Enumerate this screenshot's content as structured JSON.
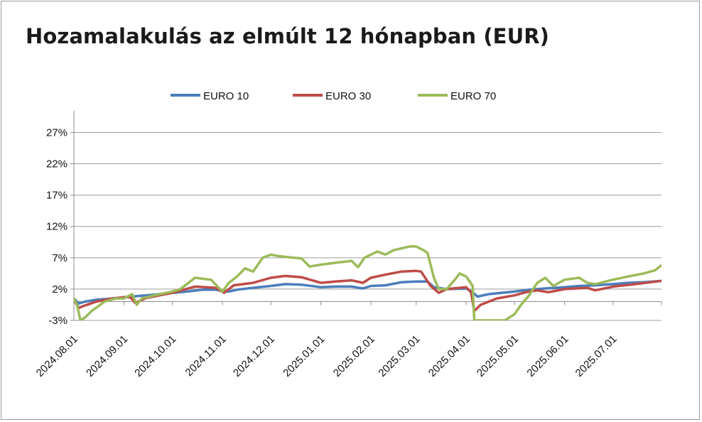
{
  "chart_data": {
    "type": "line",
    "title": "Hozamalakulás az elmúlt 12 hónapban (EUR)",
    "xlabel": "",
    "ylabel": "",
    "y_tick_labels": [
      "-3%",
      "2%",
      "7%",
      "12%",
      "17%",
      "22%",
      "27%"
    ],
    "y_ticks": [
      -3,
      2,
      7,
      12,
      17,
      22,
      27
    ],
    "ylim": [
      -3,
      30
    ],
    "x_tick_labels": [
      "2024.08.01",
      "2024.09.01",
      "2024.10.01",
      "2024.11.01",
      "2024.12.01",
      "2025.01.01",
      "2025.02.01",
      "2025.03.01",
      "2025.04.01",
      "2025.05.01",
      "2025.06.01",
      "2025.07.01"
    ],
    "x_range": [
      "2024.08.01",
      "2025.07.31"
    ],
    "grid": "horizontal",
    "legend_position": "top",
    "series": [
      {
        "name": "EURO 10",
        "color": "#4a7ebb",
        "points": [
          [
            "2024.08.01",
            0.5
          ],
          [
            "2024.08.04",
            -0.3
          ],
          [
            "2024.08.08",
            0.0
          ],
          [
            "2024.08.15",
            0.3
          ],
          [
            "2024.08.25",
            0.5
          ],
          [
            "2024.09.01",
            0.7
          ],
          [
            "2024.09.10",
            0.9
          ],
          [
            "2024.09.20",
            1.1
          ],
          [
            "2024.10.01",
            1.4
          ],
          [
            "2024.10.10",
            1.6
          ],
          [
            "2024.10.20",
            1.9
          ],
          [
            "2024.10.28",
            1.9
          ],
          [
            "2024.11.01",
            1.7
          ],
          [
            "2024.11.05",
            1.6
          ],
          [
            "2024.11.10",
            1.9
          ],
          [
            "2024.11.20",
            2.2
          ],
          [
            "2024.12.01",
            2.5
          ],
          [
            "2024.12.10",
            2.8
          ],
          [
            "2024.12.20",
            2.7
          ],
          [
            "2025.01.01",
            2.3
          ],
          [
            "2025.01.10",
            2.4
          ],
          [
            "2025.01.20",
            2.4
          ],
          [
            "2025.01.27",
            2.1
          ],
          [
            "2025.02.01",
            2.5
          ],
          [
            "2025.02.10",
            2.6
          ],
          [
            "2025.02.20",
            3.1
          ],
          [
            "2025.03.01",
            3.2
          ],
          [
            "2025.03.08",
            3.2
          ],
          [
            "2025.03.12",
            2.3
          ],
          [
            "2025.03.20",
            2.0
          ],
          [
            "2025.04.01",
            2.1
          ],
          [
            "2025.04.05",
            1.5
          ],
          [
            "2025.04.08",
            0.8
          ],
          [
            "2025.04.15",
            1.2
          ],
          [
            "2025.05.01",
            1.6
          ],
          [
            "2025.05.10",
            1.9
          ],
          [
            "2025.05.20",
            2.1
          ],
          [
            "2025.06.01",
            2.3
          ],
          [
            "2025.06.10",
            2.5
          ],
          [
            "2025.06.20",
            2.6
          ],
          [
            "2025.07.01",
            2.8
          ],
          [
            "2025.07.10",
            3.0
          ],
          [
            "2025.07.20",
            3.1
          ],
          [
            "2025.07.31",
            3.3
          ]
        ]
      },
      {
        "name": "EURO 30",
        "color": "#be4b48",
        "points": [
          [
            "2024.08.01",
            0.3
          ],
          [
            "2024.08.04",
            -1.0
          ],
          [
            "2024.08.08",
            -0.6
          ],
          [
            "2024.08.15",
            0.0
          ],
          [
            "2024.08.25",
            0.5
          ],
          [
            "2024.09.01",
            0.7
          ],
          [
            "2024.09.05",
            0.7
          ],
          [
            "2024.09.08",
            -0.2
          ],
          [
            "2024.09.15",
            0.6
          ],
          [
            "2024.10.01",
            1.4
          ],
          [
            "2024.10.08",
            1.9
          ],
          [
            "2024.10.15",
            2.4
          ],
          [
            "2024.10.28",
            2.2
          ],
          [
            "2024.11.02",
            1.4
          ],
          [
            "2024.11.08",
            2.6
          ],
          [
            "2024.11.20",
            3.0
          ],
          [
            "2024.12.01",
            3.8
          ],
          [
            "2024.12.10",
            4.1
          ],
          [
            "2024.12.20",
            3.9
          ],
          [
            "2025.01.01",
            3.0
          ],
          [
            "2025.01.10",
            3.2
          ],
          [
            "2025.01.20",
            3.4
          ],
          [
            "2025.01.27",
            3.0
          ],
          [
            "2025.02.01",
            3.8
          ],
          [
            "2025.02.10",
            4.3
          ],
          [
            "2025.02.20",
            4.8
          ],
          [
            "2025.03.01",
            4.9
          ],
          [
            "2025.03.04",
            4.8
          ],
          [
            "2025.03.10",
            2.5
          ],
          [
            "2025.03.15",
            1.4
          ],
          [
            "2025.03.20",
            2.0
          ],
          [
            "2025.04.01",
            2.3
          ],
          [
            "2025.04.04",
            1.5
          ],
          [
            "2025.04.06",
            -1.5
          ],
          [
            "2025.04.10",
            -0.5
          ],
          [
            "2025.04.20",
            0.5
          ],
          [
            "2025.05.01",
            1.0
          ],
          [
            "2025.05.08",
            1.5
          ],
          [
            "2025.05.15",
            1.8
          ],
          [
            "2025.05.22",
            1.5
          ],
          [
            "2025.06.01",
            2.0
          ],
          [
            "2025.06.15",
            2.2
          ],
          [
            "2025.06.20",
            1.8
          ],
          [
            "2025.07.01",
            2.4
          ],
          [
            "2025.07.15",
            2.8
          ],
          [
            "2025.07.31",
            3.3
          ]
        ]
      },
      {
        "name": "EURO 70",
        "color": "#9bbb59",
        "points": [
          [
            "2024.08.01",
            0.5
          ],
          [
            "2024.08.03",
            -0.5
          ],
          [
            "2024.08.05",
            -3.0
          ],
          [
            "2024.08.08",
            -2.5
          ],
          [
            "2024.08.12",
            -1.5
          ],
          [
            "2024.08.20",
            0.0
          ],
          [
            "2024.08.27",
            0.5
          ],
          [
            "2024.09.01",
            0.5
          ],
          [
            "2024.09.06",
            1.2
          ],
          [
            "2024.09.09",
            -0.5
          ],
          [
            "2024.09.12",
            0.5
          ],
          [
            "2024.09.20",
            1.0
          ],
          [
            "2024.10.01",
            1.6
          ],
          [
            "2024.10.06",
            2.0
          ],
          [
            "2024.10.15",
            3.8
          ],
          [
            "2024.10.25",
            3.5
          ],
          [
            "2024.11.01",
            1.6
          ],
          [
            "2024.11.05",
            3.0
          ],
          [
            "2024.11.10",
            4.0
          ],
          [
            "2024.11.15",
            5.3
          ],
          [
            "2024.11.20",
            4.8
          ],
          [
            "2024.11.26",
            7.0
          ],
          [
            "2024.12.01",
            7.5
          ],
          [
            "2024.12.05",
            7.3
          ],
          [
            "2024.12.15",
            7.0
          ],
          [
            "2024.12.20",
            6.9
          ],
          [
            "2024.12.25",
            5.6
          ],
          [
            "2025.01.01",
            5.9
          ],
          [
            "2025.01.10",
            6.2
          ],
          [
            "2025.01.20",
            6.5
          ],
          [
            "2025.01.24",
            5.5
          ],
          [
            "2025.01.28",
            7.0
          ],
          [
            "2025.02.01",
            7.5
          ],
          [
            "2025.02.05",
            8.0
          ],
          [
            "2025.02.10",
            7.5
          ],
          [
            "2025.02.15",
            8.2
          ],
          [
            "2025.02.25",
            8.8
          ],
          [
            "2025.03.01",
            8.8
          ],
          [
            "2025.03.05",
            8.3
          ],
          [
            "2025.03.08",
            7.8
          ],
          [
            "2025.03.12",
            3.8
          ],
          [
            "2025.03.15",
            2.0
          ],
          [
            "2025.03.20",
            2.0
          ],
          [
            "2025.03.25",
            3.5
          ],
          [
            "2025.03.28",
            4.5
          ],
          [
            "2025.04.01",
            4.0
          ],
          [
            "2025.04.05",
            2.5
          ],
          [
            "2025.04.06",
            -3.0
          ],
          [
            "2025.04.15",
            -3.0
          ],
          [
            "2025.04.25",
            -3.0
          ],
          [
            "2025.05.01",
            -2.0
          ],
          [
            "2025.05.05",
            -0.5
          ],
          [
            "2025.05.10",
            1.0
          ],
          [
            "2025.05.15",
            3.0
          ],
          [
            "2025.05.20",
            3.8
          ],
          [
            "2025.05.25",
            2.5
          ],
          [
            "2025.06.01",
            3.5
          ],
          [
            "2025.06.10",
            3.8
          ],
          [
            "2025.06.15",
            3.0
          ],
          [
            "2025.06.20",
            2.8
          ],
          [
            "2025.07.01",
            3.5
          ],
          [
            "2025.07.10",
            4.0
          ],
          [
            "2025.07.20",
            4.5
          ],
          [
            "2025.07.27",
            5.0
          ],
          [
            "2025.07.31",
            5.8
          ]
        ]
      }
    ]
  }
}
